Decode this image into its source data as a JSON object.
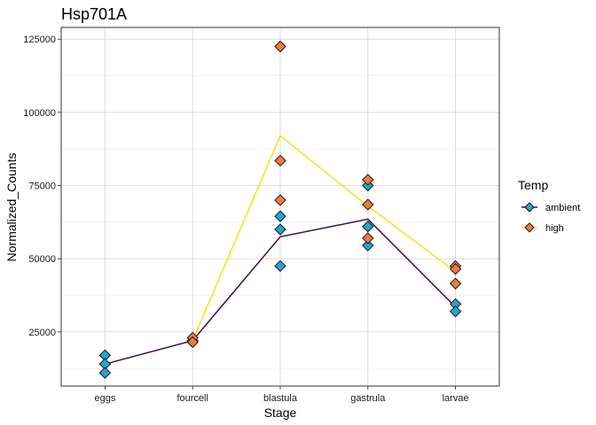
{
  "chart_data": {
    "type": "scatter",
    "title": "Hsp701A",
    "xlabel": "Stage",
    "ylabel": "Normalized_Counts",
    "categories": [
      "eggs",
      "fourcell",
      "blastula",
      "gastrula",
      "larvae"
    ],
    "ylim": [
      6500,
      129000
    ],
    "yticks": [
      25000,
      50000,
      75000,
      100000,
      125000
    ],
    "ytick_labels": [
      "25000",
      "50000",
      "75000",
      "100000",
      "125000"
    ],
    "grid": true,
    "legend": {
      "title": "Temp",
      "position": "right",
      "entries": [
        {
          "label": "ambient",
          "color": "#1fa7cc"
        },
        {
          "label": "high",
          "color": "#ee7c3c"
        }
      ]
    },
    "series": [
      {
        "name": "ambient",
        "point_color": "#1fa7cc",
        "line_color": "#430a4e",
        "points": [
          {
            "x": "eggs",
            "y": 17000
          },
          {
            "x": "eggs",
            "y": 14000
          },
          {
            "x": "eggs",
            "y": 11000
          },
          {
            "x": "fourcell",
            "y": 22000
          },
          {
            "x": "blastula",
            "y": 64500
          },
          {
            "x": "blastula",
            "y": 60000
          },
          {
            "x": "blastula",
            "y": 47500
          },
          {
            "x": "gastrula",
            "y": 75000
          },
          {
            "x": "gastrula",
            "y": 61000
          },
          {
            "x": "gastrula",
            "y": 54500
          },
          {
            "x": "larvae",
            "y": 34500
          },
          {
            "x": "larvae",
            "y": 32000
          }
        ],
        "mean_line": [
          14000,
          22000,
          57500,
          63500,
          33500
        ]
      },
      {
        "name": "high",
        "point_color": "#ee7c3c",
        "line_color": "#f5e216",
        "points": [
          {
            "x": "fourcell",
            "y": 23000
          },
          {
            "x": "fourcell",
            "y": 21500
          },
          {
            "x": "blastula",
            "y": 122500
          },
          {
            "x": "blastula",
            "y": 83500
          },
          {
            "x": "blastula",
            "y": 70000
          },
          {
            "x": "gastrula",
            "y": 77000
          },
          {
            "x": "gastrula",
            "y": 68500
          },
          {
            "x": "gastrula",
            "y": 57000
          },
          {
            "x": "larvae",
            "y": 47500
          },
          {
            "x": "larvae",
            "y": 46500
          },
          {
            "x": "larvae",
            "y": 41500
          }
        ],
        "mean_line": [
          null,
          22000,
          92000,
          68000,
          45500
        ]
      }
    ]
  }
}
